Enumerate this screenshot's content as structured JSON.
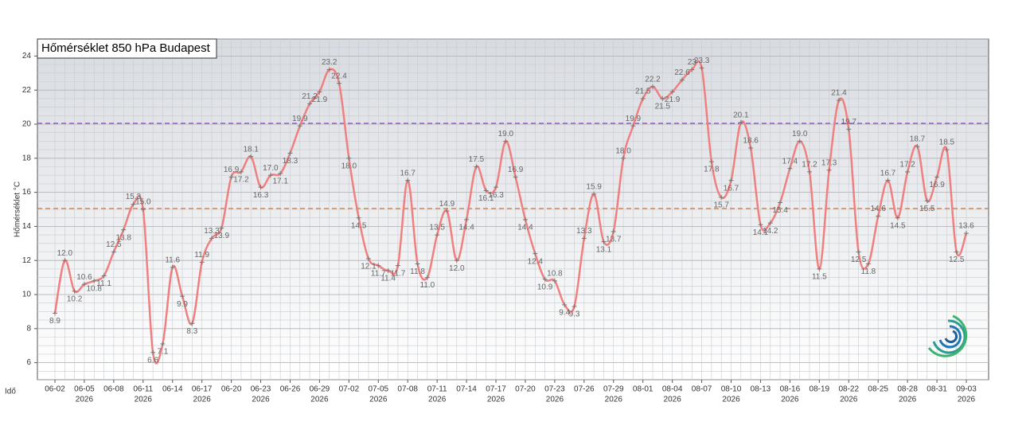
{
  "chart_data": {
    "type": "line",
    "title": "Hőmérséklet 850 hPa Budapest",
    "y_label": "Hőmérséklet °C",
    "x_label": "Idő",
    "categories": [
      "06-02",
      "06-03",
      "06-04",
      "06-05",
      "06-06",
      "06-07",
      "06-08",
      "06-09",
      "06-10",
      "06-11",
      "06-12",
      "06-13",
      "06-14",
      "06-15",
      "06-16",
      "06-17",
      "06-18",
      "06-19",
      "06-20",
      "06-21",
      "06-22",
      "06-23",
      "06-24",
      "06-25",
      "06-26",
      "06-27",
      "06-28",
      "06-29",
      "06-30",
      "07-01",
      "07-02",
      "07-03",
      "07-04",
      "07-05",
      "07-06",
      "07-07",
      "07-08",
      "07-09",
      "07-10",
      "07-11",
      "07-12",
      "07-13",
      "07-14",
      "07-15",
      "07-16",
      "07-17",
      "07-18",
      "07-19",
      "07-20",
      "07-21",
      "07-22",
      "07-23",
      "07-24",
      "07-25",
      "07-26",
      "07-27",
      "07-28",
      "07-29",
      "07-30",
      "07-31",
      "08-01",
      "08-02",
      "08-03",
      "08-04",
      "08-05",
      "08-06",
      "08-07",
      "08-08",
      "08-09",
      "08-10",
      "08-11",
      "08-12",
      "08-13",
      "08-14",
      "08-15",
      "08-16",
      "08-17",
      "08-18",
      "08-19",
      "08-20",
      "08-21",
      "08-22",
      "08-23",
      "08-24",
      "08-25",
      "08-26",
      "08-27",
      "08-28",
      "08-29",
      "08-30",
      "08-31",
      "09-01",
      "09-02",
      "09-03"
    ],
    "series": [
      {
        "color": "#f08080",
        "values": [
          8.9,
          12.0,
          10.2,
          10.6,
          10.8,
          11.1,
          12.5,
          13.8,
          15.3,
          15.0,
          6.6,
          7.1,
          11.6,
          9.9,
          8.3,
          11.9,
          13.3,
          13.9,
          16.9,
          17.2,
          18.1,
          16.3,
          17.0,
          17.1,
          18.3,
          19.9,
          21.2,
          21.9,
          23.2,
          22.4,
          18.0,
          14.5,
          12.1,
          11.7,
          11.4,
          11.7,
          16.7,
          11.8,
          11.0,
          13.5,
          14.9,
          12.0,
          14.4,
          17.5,
          16.1,
          16.3,
          19.0,
          16.9,
          14.4,
          12.4,
          10.9,
          10.8,
          9.4,
          9.3,
          13.3,
          15.9,
          13.1,
          13.7,
          18.0,
          19.9,
          21.5,
          22.2,
          21.5,
          21.9,
          22.6,
          23.2,
          23.3,
          17.8,
          15.7,
          16.7,
          20.1,
          18.6,
          14.1,
          14.2,
          15.4,
          17.4,
          19.0,
          17.2,
          11.5,
          17.3,
          21.4,
          19.7,
          12.5,
          11.8,
          14.6,
          16.7,
          14.5,
          17.2,
          18.7,
          15.5,
          16.9,
          18.5,
          12.5,
          13.6
        ],
        "value_labels": [
          "8.9",
          "12.0",
          "10.2",
          "10.6",
          "10.8",
          "11.1",
          "12.5",
          "13.8",
          "15.3",
          "15.0",
          "6.6",
          "7.1",
          "11.6",
          "9.9",
          "8.3",
          "11.9",
          "13.3",
          "13.9",
          "16.9",
          "17.2",
          "18.1",
          "16.3",
          "17.0",
          "17.1",
          "18.3",
          "19.9",
          "21.2",
          "21.9",
          "23.2",
          "22.4",
          "18.0",
          "14.5",
          "12.1",
          "11.7",
          "11.4",
          "11.7",
          "16.7",
          "11.8",
          "11.0",
          "13.5",
          "14.9",
          "12.0",
          "14.4",
          "17.5",
          "16.1",
          "16.3",
          "19.0",
          "16.9",
          "14.4",
          "12.4",
          "10.9",
          "10.8",
          "9.4",
          "9.3",
          "13.3",
          "15.9",
          "13.1",
          "13.7",
          "18.0",
          "19.9",
          "21.5",
          "22.2",
          "21.5",
          "21.9",
          "22.6",
          "23",
          "23.3",
          "17.8",
          "15.7",
          "16.7",
          "20.1",
          "18.6",
          "14.1",
          "14.2",
          "15.4",
          "17.4",
          "19.0",
          "17.2",
          "11.5",
          "17.3",
          "21.4",
          "19.7",
          "12.5",
          "11.8",
          "14.6",
          "16.7",
          "14.5",
          "17.2",
          "18.7",
          "15.5",
          "16.9",
          "18.5",
          "12.5",
          "13.6"
        ]
      }
    ],
    "ylim": [
      5,
      25
    ],
    "yticks": [
      6,
      8,
      10,
      12,
      14,
      16,
      18,
      20,
      22,
      24
    ],
    "xticks": [
      "06-02",
      "06-05",
      "06-08",
      "06-11",
      "06-14",
      "06-17",
      "06-20",
      "06-23",
      "06-26",
      "06-29",
      "07-02",
      "07-05",
      "07-08",
      "07-11",
      "07-14",
      "07-17",
      "07-20",
      "07-23",
      "07-26",
      "07-29",
      "08-01",
      "08-04",
      "08-07",
      "08-10",
      "08-13",
      "08-16",
      "08-19",
      "08-22",
      "08-25",
      "08-28",
      "08-31",
      "09-03"
    ],
    "year_labels": [
      {
        "at": "06-05",
        "label": "2026"
      },
      {
        "at": "06-11",
        "label": "2026"
      },
      {
        "at": "06-17",
        "label": "2026"
      },
      {
        "at": "06-23",
        "label": "2026"
      },
      {
        "at": "06-29",
        "label": "2026"
      },
      {
        "at": "07-05",
        "label": "2026"
      },
      {
        "at": "07-11",
        "label": "2026"
      },
      {
        "at": "07-17",
        "label": "2026"
      },
      {
        "at": "07-23",
        "label": "2026"
      },
      {
        "at": "07-29",
        "label": "2026"
      },
      {
        "at": "08-04",
        "label": "2026"
      },
      {
        "at": "08-10",
        "label": "2026"
      },
      {
        "at": "08-16",
        "label": "2026"
      },
      {
        "at": "08-22",
        "label": "2026"
      },
      {
        "at": "08-28",
        "label": "2026"
      },
      {
        "at": "09-03",
        "label": "2026"
      }
    ],
    "reference_lines": [
      {
        "value": 20.05,
        "color": "#7b3fbf"
      },
      {
        "value": 15.05,
        "color": "#d2691e"
      }
    ],
    "grid": true
  }
}
